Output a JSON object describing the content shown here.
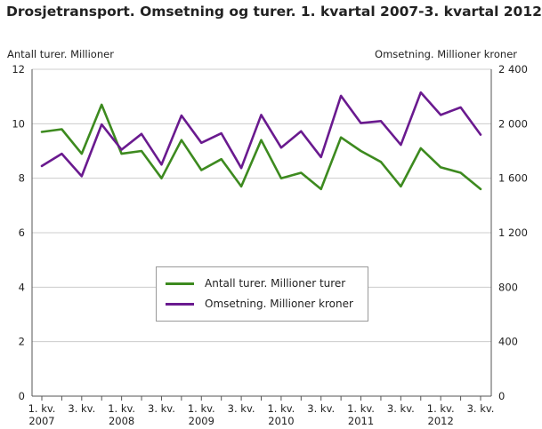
{
  "title": "Drosjetransport. Omsetning og turer. 1. kvartal 2007-3. kvartal 2012",
  "colors": {
    "series1": "#3d8a1f",
    "series2": "#6a1a8f",
    "grid": "#cccccc",
    "axis": "#555555"
  },
  "chart_data": {
    "type": "line",
    "title": "Drosjetransport. Omsetning og turer. 1. kvartal 2007-3. kvartal 2012",
    "ylabel_left": "Antall turer. Millioner",
    "ylabel_right": "Omsetning. Millioner kroner",
    "ylim_left": [
      0,
      12
    ],
    "ylim_right": [
      0,
      2400
    ],
    "yticks_left": [
      "0",
      "2",
      "4",
      "6",
      "8",
      "10",
      "12"
    ],
    "yticks_right": [
      "0",
      "400",
      "800",
      "1 200",
      "1 600",
      "2 000",
      "2 400"
    ],
    "grid": true,
    "legend_position": "center",
    "x": [
      "2007K1",
      "2007K2",
      "2007K3",
      "2007K4",
      "2008K1",
      "2008K2",
      "2008K3",
      "2008K4",
      "2009K1",
      "2009K2",
      "2009K3",
      "2009K4",
      "2010K1",
      "2010K2",
      "2010K3",
      "2010K4",
      "2011K1",
      "2011K2",
      "2011K3",
      "2011K4",
      "2012K1",
      "2012K2",
      "2012K3"
    ],
    "xtick_labels": [
      {
        "index": 0,
        "line1": "1. kv.",
        "line2": "2007"
      },
      {
        "index": 2,
        "line1": "3. kv.",
        "line2": ""
      },
      {
        "index": 4,
        "line1": "1. kv.",
        "line2": "2008"
      },
      {
        "index": 6,
        "line1": "3. kv.",
        "line2": ""
      },
      {
        "index": 8,
        "line1": "1. kv.",
        "line2": "2009"
      },
      {
        "index": 10,
        "line1": "3. kv.",
        "line2": ""
      },
      {
        "index": 12,
        "line1": "1. kv.",
        "line2": "2010"
      },
      {
        "index": 14,
        "line1": "3. kv.",
        "line2": ""
      },
      {
        "index": 16,
        "line1": "1. kv.",
        "line2": "2011"
      },
      {
        "index": 18,
        "line1": "3. kv.",
        "line2": ""
      },
      {
        "index": 20,
        "line1": "1. kv.",
        "line2": "2012"
      },
      {
        "index": 22,
        "line1": "3. kv.",
        "line2": ""
      }
    ],
    "series": [
      {
        "name": "Antall turer. Millioner turer",
        "axis": "left",
        "color": "#3d8a1f",
        "values": [
          9.7,
          9.8,
          8.9,
          10.7,
          8.9,
          9.0,
          8.0,
          9.4,
          8.3,
          8.7,
          7.7,
          9.4,
          8.0,
          8.2,
          7.6,
          9.5,
          9.0,
          8.6,
          7.7,
          9.1,
          8.4,
          8.2,
          7.6
        ]
      },
      {
        "name": "Omsetning. Millioner kroner",
        "axis": "right",
        "color": "#6a1a8f",
        "values": [
          1690,
          1780,
          1615,
          1995,
          1810,
          1925,
          1700,
          2060,
          1860,
          1930,
          1675,
          2065,
          1825,
          1945,
          1755,
          2205,
          2005,
          2020,
          1845,
          2230,
          2065,
          2120,
          1920
        ]
      }
    ]
  }
}
